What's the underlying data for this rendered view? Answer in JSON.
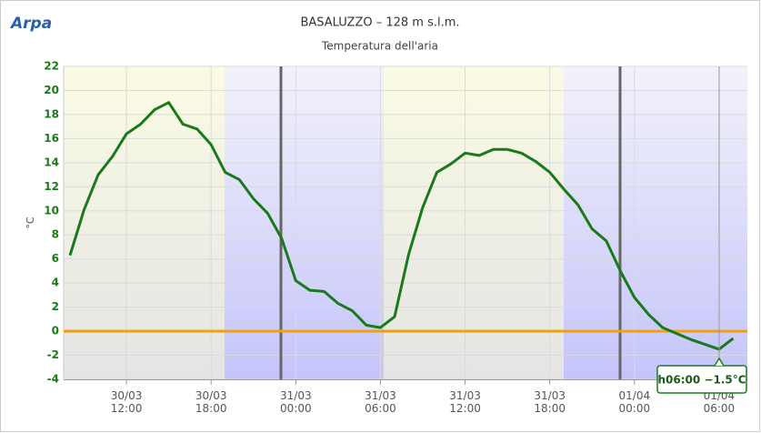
{
  "logo": "Arpa",
  "chart_data": {
    "type": "line",
    "title": "BASALUZZO – 128 m s.l.m.",
    "subtitle": "Temperatura dell'aria",
    "y_label": "°C",
    "tooltip": "h06:00 −1.5°C",
    "x": [
      "30/03 08:00",
      "30/03 09:00",
      "30/03 10:00",
      "30/03 11:00",
      "30/03 12:00",
      "30/03 13:00",
      "30/03 14:00",
      "30/03 15:00",
      "30/03 16:00",
      "30/03 17:00",
      "30/03 18:00",
      "30/03 19:00",
      "30/03 20:00",
      "30/03 21:00",
      "30/03 22:00",
      "30/03 23:00",
      "31/03 00:00",
      "31/03 01:00",
      "31/03 02:00",
      "31/03 03:00",
      "31/03 04:00",
      "31/03 05:00",
      "31/03 06:00",
      "31/03 07:00",
      "31/03 08:00",
      "31/03 09:00",
      "31/03 10:00",
      "31/03 11:00",
      "31/03 12:00",
      "31/03 13:00",
      "31/03 14:00",
      "31/03 15:00",
      "31/03 16:00",
      "31/03 17:00",
      "31/03 18:00",
      "31/03 19:00",
      "31/03 20:00",
      "31/03 21:00",
      "31/03 22:00",
      "31/03 23:00",
      "01/04 00:00",
      "01/04 01:00",
      "01/04 02:00",
      "01/04 03:00",
      "01/04 04:00",
      "01/04 05:00",
      "01/04 06:00",
      "01/04 07:00"
    ],
    "series": [
      {
        "name": "Temperatura",
        "color": "#1a7a1a",
        "values": [
          6.3,
          10.1,
          13.0,
          14.5,
          16.4,
          17.2,
          18.4,
          19.0,
          17.2,
          16.8,
          15.5,
          13.2,
          12.6,
          11.0,
          9.8,
          7.7,
          4.2,
          3.4,
          3.3,
          2.3,
          1.7,
          0.5,
          0.3,
          1.2,
          6.4,
          10.3,
          13.2,
          13.9,
          14.8,
          14.6,
          15.1,
          15.1,
          14.8,
          14.1,
          13.2,
          11.8,
          10.5,
          8.5,
          7.5,
          5.0,
          2.8,
          1.4,
          0.3,
          -0.2,
          -0.7,
          -1.1,
          -1.5,
          -0.6
        ]
      }
    ],
    "xticks": [
      "30/03 12:00",
      "30/03 18:00",
      "31/03 00:00",
      "31/03 06:00",
      "31/03 12:00",
      "31/03 18:00",
      "01/04 00:00",
      "01/04 06:00"
    ],
    "ylim": [
      -4,
      22
    ],
    "yticks": [
      -4,
      -2,
      0,
      2,
      4,
      6,
      8,
      10,
      12,
      14,
      16,
      18,
      20,
      22
    ],
    "grid": true,
    "zero_line_color": "#f5a000"
  }
}
